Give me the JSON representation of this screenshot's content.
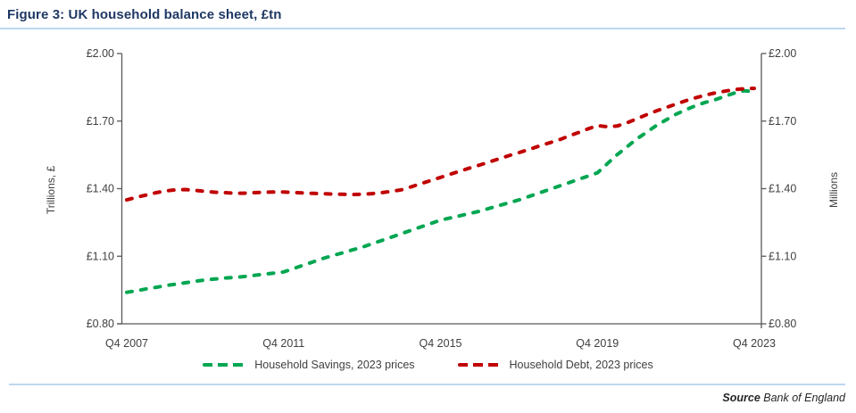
{
  "title": "Figure 3: UK household balance sheet, £tn",
  "source": {
    "label": "Source",
    "text": " Bank of England"
  },
  "colors": {
    "title_text": "#1F3864",
    "rule_line": "#BDD7EE",
    "axis_line": "#595959",
    "tick_text": "#404040",
    "savings_line": "#00A651",
    "debt_line": "#C00000"
  },
  "chart_data": {
    "type": "line",
    "title": "Figure 3: UK household balance sheet, £tn",
    "ylabel_left": "Trillions, £",
    "ylabel_right": "Millions",
    "ylim": [
      0.8,
      2.0
    ],
    "y_tick_values": [
      0.8,
      1.1,
      1.4,
      1.7,
      2.0
    ],
    "y_tick_labels": [
      "£0.80",
      "£1.10",
      "£1.40",
      "£1.70",
      "£2.00"
    ],
    "xlim": [
      2007.75,
      2023.75
    ],
    "x_tick_positions": [
      2007.75,
      2011.75,
      2015.75,
      2019.75,
      2023.75
    ],
    "x_tick_labels": [
      "Q4 2007",
      "Q4 2011",
      "Q4 2015",
      "Q4 2019",
      "Q4 2023"
    ],
    "grid": false,
    "legend_position": "bottom",
    "x_unit": "quarterly, Q4 2007 to Q4 2023",
    "x": [
      2007.75,
      2008.0,
      2008.25,
      2008.5,
      2008.75,
      2009.0,
      2009.25,
      2009.5,
      2009.75,
      2010.0,
      2010.25,
      2010.5,
      2010.75,
      2011.0,
      2011.25,
      2011.5,
      2011.75,
      2012.0,
      2012.25,
      2012.5,
      2012.75,
      2013.0,
      2013.25,
      2013.5,
      2013.75,
      2014.0,
      2014.25,
      2014.5,
      2014.75,
      2015.0,
      2015.25,
      2015.5,
      2015.75,
      2016.0,
      2016.25,
      2016.5,
      2016.75,
      2017.0,
      2017.25,
      2017.5,
      2017.75,
      2018.0,
      2018.25,
      2018.5,
      2018.75,
      2019.0,
      2019.25,
      2019.5,
      2019.75,
      2020.0,
      2020.25,
      2020.5,
      2020.75,
      2021.0,
      2021.25,
      2021.5,
      2021.75,
      2022.0,
      2022.25,
      2022.5,
      2022.75,
      2023.0,
      2023.25,
      2023.5,
      2023.75
    ],
    "series": [
      {
        "name": "Household Savings, 2023 prices",
        "color": "#00A651",
        "dashed": true,
        "values": [
          0.94,
          0.947,
          0.955,
          0.962,
          0.97,
          0.976,
          0.982,
          0.989,
          0.995,
          0.999,
          1.003,
          1.006,
          1.01,
          1.015,
          1.02,
          1.025,
          1.03,
          1.045,
          1.06,
          1.075,
          1.09,
          1.103,
          1.115,
          1.128,
          1.14,
          1.155,
          1.17,
          1.185,
          1.2,
          1.215,
          1.23,
          1.245,
          1.26,
          1.27,
          1.28,
          1.29,
          1.3,
          1.313,
          1.325,
          1.338,
          1.35,
          1.365,
          1.38,
          1.395,
          1.41,
          1.425,
          1.44,
          1.455,
          1.47,
          1.51,
          1.55,
          1.585,
          1.62,
          1.65,
          1.68,
          1.705,
          1.73,
          1.75,
          1.768,
          1.783,
          1.795,
          1.81,
          1.825,
          1.835,
          1.83
        ]
      },
      {
        "name": "Household Debt, 2023 prices",
        "color": "#C00000",
        "dashed": true,
        "values": [
          1.35,
          1.362,
          1.372,
          1.382,
          1.39,
          1.395,
          1.396,
          1.392,
          1.388,
          1.384,
          1.382,
          1.38,
          1.38,
          1.382,
          1.384,
          1.385,
          1.385,
          1.383,
          1.381,
          1.379,
          1.378,
          1.376,
          1.375,
          1.374,
          1.375,
          1.378,
          1.382,
          1.388,
          1.395,
          1.408,
          1.422,
          1.436,
          1.45,
          1.464,
          1.478,
          1.492,
          1.505,
          1.519,
          1.533,
          1.547,
          1.56,
          1.574,
          1.588,
          1.602,
          1.615,
          1.632,
          1.648,
          1.665,
          1.68,
          1.675,
          1.678,
          1.692,
          1.71,
          1.728,
          1.745,
          1.76,
          1.775,
          1.79,
          1.803,
          1.815,
          1.825,
          1.833,
          1.84,
          1.844,
          1.845
        ]
      }
    ]
  }
}
